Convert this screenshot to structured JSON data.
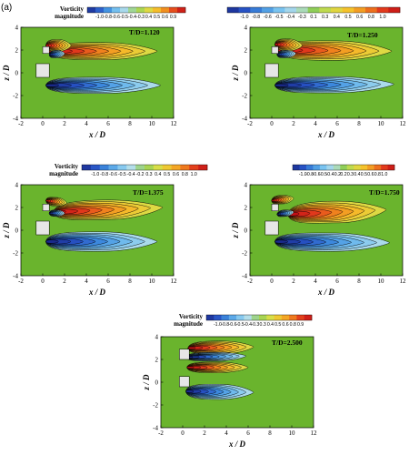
{
  "figure_label": "(a)",
  "chart_data": [
    {
      "type": "heatmap",
      "time_label": "T/D=1.120",
      "xlabel": "x / D",
      "ylabel": "z / D",
      "xlim": [
        -2,
        12
      ],
      "ylim": [
        -4,
        4
      ],
      "xticks": [
        "-2",
        "0",
        "2",
        "4",
        "6",
        "8",
        "10",
        "12"
      ],
      "yticks": [
        "-4",
        "-2",
        "0",
        "2",
        "4"
      ],
      "colorbar_title": [
        "Vorticity",
        "magnitude"
      ],
      "colorbar_ticks": [
        "-1.0",
        "-0.8",
        "-0.6",
        "-0.5",
        "-0.4",
        "-0.3",
        "0.4",
        "0.5",
        "0.6",
        "0.9"
      ],
      "colorbar_range": [
        -1.0,
        1.0
      ],
      "contours": [
        {
          "name": "upper_wake",
          "sign": "positive",
          "x": [
            0.5,
            10.5
          ],
          "z": [
            1.9,
            1.9
          ],
          "thickness": 0.8,
          "peak": 1.0
        },
        {
          "name": "lower_wake",
          "sign": "negative",
          "x": [
            0.3,
            10.8
          ],
          "z": [
            -1.1,
            -1.1
          ],
          "thickness": 0.75,
          "peak": -1.0
        },
        {
          "name": "upper_shed_vortex",
          "sign": "positive",
          "x": [
            0.3,
            2.6
          ],
          "z": [
            2.4,
            2.4
          ],
          "thickness": 0.55,
          "peak": 1.0
        },
        {
          "name": "upper_negative_vortex",
          "sign": "negative",
          "x": [
            0.6,
            2.0
          ],
          "z": [
            1.6,
            1.7
          ],
          "thickness": 0.35,
          "peak": -1.0
        }
      ]
    },
    {
      "type": "heatmap",
      "time_label": "T/D=1.250",
      "xlabel": "x / D",
      "ylabel": "z / D",
      "xlim": [
        -2,
        12
      ],
      "ylim": [
        -4,
        4
      ],
      "xticks": [
        "-2",
        "0",
        "2",
        "4",
        "6",
        "8",
        "10",
        "12"
      ],
      "yticks": [
        "-4",
        "-2",
        "0",
        "2",
        "4"
      ],
      "colorbar_title": [],
      "colorbar_ticks": [
        "-1.0",
        "-0.8",
        "-0.6",
        "-0.5",
        "-0.4",
        "-0.3",
        "0.1",
        "0.3",
        "0.4",
        "0.5",
        "0.6",
        "0.8",
        "1.0"
      ],
      "colorbar_range": [
        -1.0,
        1.0
      ],
      "contours": [
        {
          "name": "upper_wake",
          "sign": "positive",
          "x": [
            0.5,
            11.0
          ],
          "z": [
            2.0,
            1.9
          ],
          "thickness": 0.9,
          "peak": 1.0
        },
        {
          "name": "lower_wake",
          "sign": "negative",
          "x": [
            0.3,
            11.2
          ],
          "z": [
            -1.1,
            -1.0
          ],
          "thickness": 0.75,
          "peak": -1.0
        },
        {
          "name": "upper_shed_vortex",
          "sign": "positive",
          "x": [
            0.3,
            2.8
          ],
          "z": [
            2.5,
            2.4
          ],
          "thickness": 0.55,
          "peak": 1.0
        },
        {
          "name": "upper_negative_vortex",
          "sign": "negative",
          "x": [
            0.5,
            2.2
          ],
          "z": [
            1.6,
            1.7
          ],
          "thickness": 0.35,
          "peak": -1.0
        }
      ]
    },
    {
      "type": "heatmap",
      "time_label": "T/D=1.375",
      "xlabel": "x / D",
      "ylabel": "z / D",
      "xlim": [
        -2,
        12
      ],
      "ylim": [
        -4,
        4
      ],
      "xticks": [
        "-2",
        "0",
        "2",
        "4",
        "6",
        "8",
        "10",
        "12"
      ],
      "yticks": [
        "-4",
        "-2",
        "0",
        "2",
        "4"
      ],
      "colorbar_title": [
        "Vorticity",
        "magnitude"
      ],
      "colorbar_ticks": [
        "-1.0",
        "-0.8",
        "-0.6",
        "-0.5",
        "-0.4",
        "-0.2",
        "0.3",
        "0.4",
        "0.5",
        "0.6",
        "0.8",
        "1.0"
      ],
      "colorbar_range": [
        -1.0,
        1.0
      ],
      "contours": [
        {
          "name": "upper_wake",
          "sign": "positive",
          "x": [
            1.0,
            11.0
          ],
          "z": [
            1.6,
            2.0
          ],
          "thickness": 0.9,
          "peak": 1.0
        },
        {
          "name": "lower_wake",
          "sign": "negative",
          "x": [
            0.3,
            10.5
          ],
          "z": [
            -1.0,
            -1.0
          ],
          "thickness": 0.9,
          "peak": -1.0
        },
        {
          "name": "upper_shed_vortex",
          "sign": "positive",
          "x": [
            0.3,
            2.2
          ],
          "z": [
            2.6,
            2.4
          ],
          "thickness": 0.4,
          "peak": 1.0
        },
        {
          "name": "upper_negative_vortex",
          "sign": "negative",
          "x": [
            0.6,
            2.0
          ],
          "z": [
            1.5,
            1.5
          ],
          "thickness": 0.3,
          "peak": -1.0
        }
      ]
    },
    {
      "type": "heatmap",
      "time_label": "T/D=1.750",
      "xlabel": "x / D",
      "ylabel": "z / D",
      "xlim": [
        -2,
        12
      ],
      "ylim": [
        -4,
        4
      ],
      "xticks": [
        "-2",
        "0",
        "2",
        "4",
        "6",
        "8",
        "10",
        "12"
      ],
      "yticks": [
        "-4",
        "-2",
        "0",
        "2",
        "4"
      ],
      "colorbar_title": [],
      "colorbar_ticks": [
        "-1.0",
        "-0.8",
        "-0.6",
        "-0.5",
        "-0.4",
        "-0.2",
        "0.2",
        "0.3",
        "0.4",
        "0.5",
        "0.6",
        "0.8",
        "1.0"
      ],
      "colorbar_range": [
        -1.0,
        1.0
      ],
      "contours": [
        {
          "name": "upper_wake",
          "sign": "positive",
          "x": [
            1.5,
            10.5
          ],
          "z": [
            1.4,
            1.8
          ],
          "thickness": 1.0,
          "peak": 1.0
        },
        {
          "name": "lower_wake",
          "sign": "negative",
          "x": [
            0.3,
            10.8
          ],
          "z": [
            -1.0,
            -1.1
          ],
          "thickness": 0.85,
          "peak": -1.0
        },
        {
          "name": "upper_shed_vortex",
          "sign": "positive",
          "x": [
            0.0,
            2.0
          ],
          "z": [
            2.6,
            2.8
          ],
          "thickness": 0.4,
          "peak": 1.0
        },
        {
          "name": "upper_negative_vortex",
          "sign": "negative",
          "x": [
            0.5,
            2.0
          ],
          "z": [
            1.4,
            1.6
          ],
          "thickness": 0.3,
          "peak": -1.0
        }
      ]
    },
    {
      "type": "heatmap",
      "time_label": "T/D=2.500",
      "xlabel": "x / D",
      "ylabel": "z / D",
      "xlim": [
        -2,
        12
      ],
      "ylim": [
        -4,
        4
      ],
      "xticks": [
        "-2",
        "0",
        "2",
        "4",
        "6",
        "8",
        "10",
        "12"
      ],
      "yticks": [
        "-4",
        "-2",
        "0",
        "2",
        "4"
      ],
      "colorbar_title": [
        "Vorticity",
        "magnitude"
      ],
      "colorbar_ticks": [
        "-1.0",
        "-0.8",
        "-0.6",
        "-0.5",
        "-0.4",
        "-0.3",
        "0.3",
        "0.4",
        "0.5",
        "0.6",
        "0.8",
        "0.9"
      ],
      "colorbar_range": [
        -1.0,
        1.0
      ],
      "contours": [
        {
          "name": "upper_wake",
          "sign": "positive",
          "x": [
            0.5,
            6.5
          ],
          "z": [
            3.0,
            3.1
          ],
          "thickness": 0.6,
          "peak": 1.0
        },
        {
          "name": "upper_negative_band",
          "sign": "negative",
          "x": [
            0.3,
            5.8
          ],
          "z": [
            2.2,
            2.3
          ],
          "thickness": 0.4,
          "peak": -1.0
        },
        {
          "name": "middle_positive_band",
          "sign": "positive",
          "x": [
            0.4,
            6.0
          ],
          "z": [
            1.3,
            1.3
          ],
          "thickness": 0.5,
          "peak": 1.0
        },
        {
          "name": "lower_wake",
          "sign": "negative",
          "x": [
            0.3,
            6.5
          ],
          "z": [
            -0.8,
            -0.9
          ],
          "thickness": 0.7,
          "peak": -1.0
        }
      ]
    }
  ],
  "colors": {
    "background_field": "#6ab42d",
    "colormap": [
      "#1a2a8c",
      "#2752c4",
      "#3f8fe0",
      "#79c3f0",
      "#b8e0ea",
      "#8fce58",
      "#d6e04a",
      "#f5c22c",
      "#f28a1e",
      "#e23a1c",
      "#c41016"
    ],
    "body": "#e6e6e6"
  }
}
